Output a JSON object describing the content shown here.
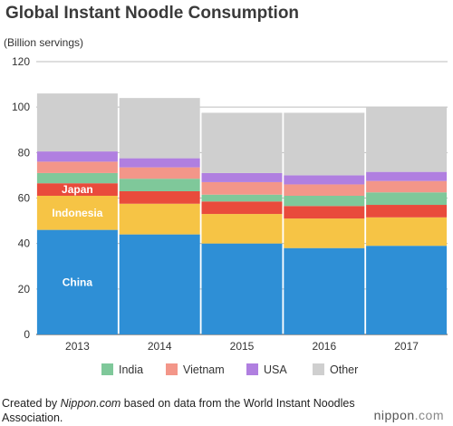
{
  "chart_data": {
    "type": "bar",
    "stacked": true,
    "title": "Global Instant Noodle Consumption",
    "unit_label": "(Billion servings)",
    "categories": [
      "2013",
      "2014",
      "2015",
      "2016",
      "2017"
    ],
    "ylim": [
      0,
      120
    ],
    "yticks": [
      0,
      20,
      40,
      60,
      80,
      100,
      120
    ],
    "grid": true,
    "legend_position": "bottom",
    "series": [
      {
        "name": "China",
        "color": "#2e8fd6",
        "values": [
          46,
          44,
          40,
          38,
          39
        ]
      },
      {
        "name": "Indonesia",
        "color": "#f6c445",
        "values": [
          15,
          13.5,
          13,
          13,
          12.5
        ]
      },
      {
        "name": "Japan",
        "color": "#e94b3c",
        "values": [
          5.5,
          5.5,
          5.5,
          5.5,
          5.5
        ]
      },
      {
        "name": "India",
        "color": "#7fc89a",
        "values": [
          4.5,
          5.5,
          3,
          4.5,
          5.5
        ]
      },
      {
        "name": "Vietnam",
        "color": "#f39689",
        "values": [
          5,
          5,
          5.5,
          5,
          5
        ]
      },
      {
        "name": "USA",
        "color": "#b07fe0",
        "values": [
          4.5,
          4,
          4,
          4,
          4
        ]
      },
      {
        "name": "Other",
        "color": "#cfcfcf",
        "values": [
          25.5,
          26.5,
          26.5,
          27.5,
          28.5
        ]
      }
    ],
    "inline_labels": [
      "Japan",
      "Indonesia",
      "China"
    ],
    "legend_entries": [
      "India",
      "Vietnam",
      "USA",
      "Other"
    ]
  },
  "footer": {
    "prefix": "Created by ",
    "site": "Nippon.com",
    "suffix": " based on data from the World Instant Noodles Association."
  },
  "logo": {
    "brand": "nippon",
    "tld": ".com"
  }
}
